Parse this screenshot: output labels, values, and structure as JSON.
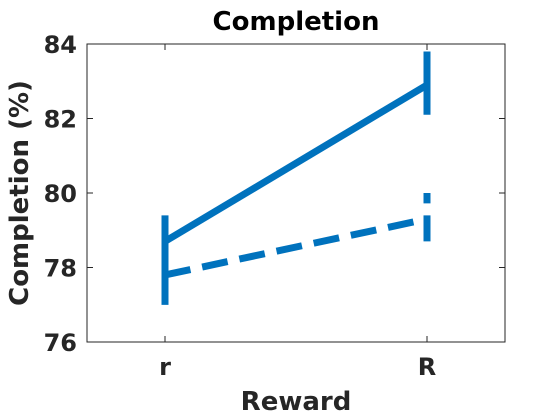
{
  "chart_data": {
    "type": "line",
    "title": "Completion",
    "xlabel": "Reward",
    "ylabel": "Completion (%)",
    "categories": [
      "r",
      "R"
    ],
    "ylim": [
      76,
      84
    ],
    "yticks": [
      "76",
      "78",
      "80",
      "82",
      "84"
    ],
    "grid": false,
    "legend": "none",
    "series": [
      {
        "style": "solid",
        "color": "#0072BD",
        "values": [
          78.7,
          82.9
        ],
        "error_low": [
          77.0,
          82.1
        ],
        "error_high": [
          79.4,
          83.8
        ]
      },
      {
        "style": "dashed",
        "color": "#0072BD",
        "values": [
          77.8,
          79.3
        ],
        "error_low": [
          77.0,
          78.7
        ],
        "error_high": [
          78.5,
          80.0
        ]
      }
    ]
  }
}
